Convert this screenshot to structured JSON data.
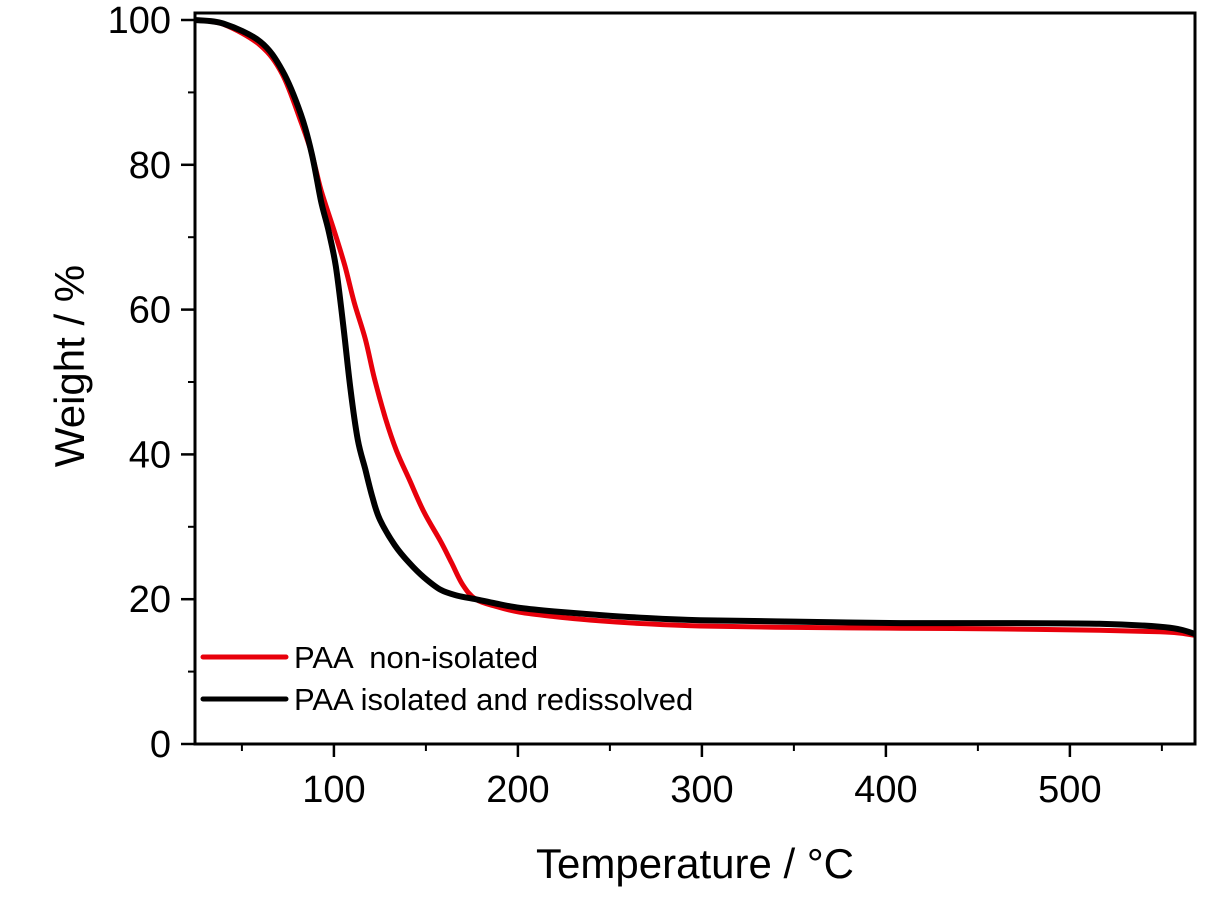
{
  "chart_data": {
    "type": "line",
    "title": "",
    "xlabel": "Temperature / °C",
    "ylabel": "Weight / %",
    "xlim": [
      24.5,
      568
    ],
    "ylim": [
      0,
      100
    ],
    "x_ticks": [
      100,
      200,
      300,
      400,
      500
    ],
    "x_tick_labels": [
      "100",
      "200",
      "300",
      "400",
      "500"
    ],
    "x_minor_ticks": [
      50,
      150,
      250,
      350,
      450,
      550
    ],
    "y_ticks": [
      0,
      20,
      40,
      60,
      80,
      100
    ],
    "y_tick_labels": [
      "0",
      "20",
      "40",
      "60",
      "80",
      "100"
    ],
    "y_minor_ticks": [
      10,
      30,
      50,
      70,
      90
    ],
    "grid": false,
    "legend_position": "bottom-left",
    "series": [
      {
        "name": "PAA  non-isolated",
        "color": "#e8000b",
        "x": [
          24.5,
          40,
          60,
          72,
          82,
          88,
          93,
          100,
          106,
          111,
          117,
          122,
          128,
          134,
          141,
          149,
          158,
          164,
          170,
          177,
          188,
          201,
          220,
          245,
          270,
          299,
          350,
          408,
          460,
          516,
          549,
          560,
          568
        ],
        "y": [
          100,
          99.4,
          96.5,
          92.5,
          86,
          81.5,
          76.5,
          71,
          66,
          61,
          56,
          50.5,
          45,
          40.5,
          36.5,
          32,
          28,
          25,
          22,
          20,
          19,
          18.2,
          17.6,
          17,
          16.6,
          16.3,
          16.1,
          16,
          15.9,
          15.7,
          15.5,
          15.3,
          15
        ]
      },
      {
        "name": "PAA isolated and redissolved",
        "color": "#000000",
        "x": [
          24.5,
          40,
          60,
          72,
          82,
          88,
          93,
          97,
          101,
          105,
          109,
          113,
          117,
          121,
          125,
          133,
          141,
          149,
          158,
          167,
          177,
          188,
          201,
          220,
          245,
          270,
          299,
          350,
          408,
          460,
          516,
          549,
          560,
          568
        ],
        "y": [
          100,
          99.5,
          97,
          93,
          87,
          81.5,
          75,
          71,
          66,
          58,
          49,
          42,
          38,
          34,
          31,
          27.5,
          25,
          23,
          21.3,
          20.5,
          20,
          19.4,
          18.8,
          18.3,
          17.8,
          17.4,
          17.1,
          16.9,
          16.7,
          16.7,
          16.6,
          16.2,
          15.8,
          15.2
        ]
      }
    ]
  }
}
